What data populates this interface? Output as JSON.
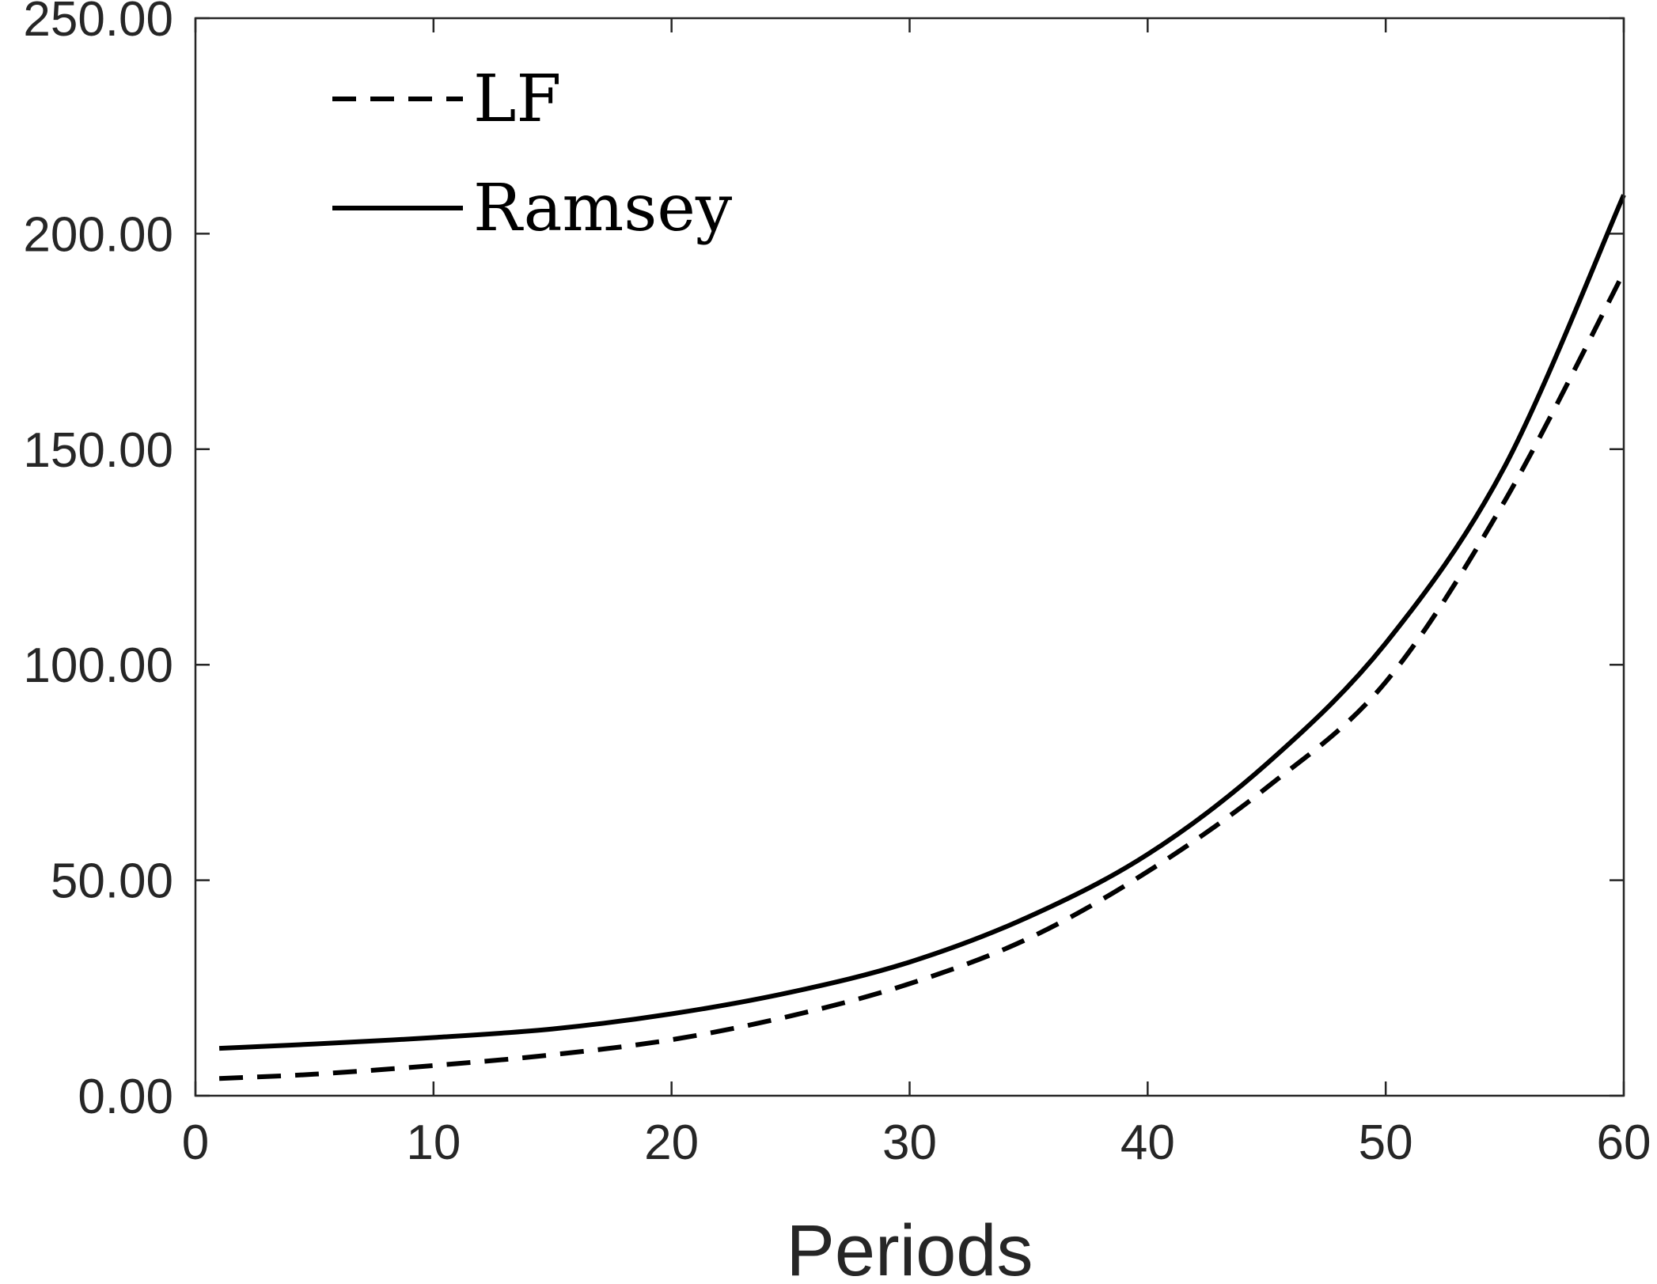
{
  "chart_data": {
    "type": "line",
    "title": "",
    "xlabel": "Periods",
    "ylabel": "",
    "xlim": [
      0,
      60
    ],
    "ylim": [
      0,
      250
    ],
    "x_ticks": [
      0,
      10,
      20,
      30,
      40,
      50,
      60
    ],
    "x_tick_labels": [
      "0",
      "10",
      "20",
      "30",
      "40",
      "50",
      "60"
    ],
    "y_ticks": [
      0,
      50,
      100,
      150,
      200,
      250
    ],
    "y_tick_labels": [
      "0.00",
      "50.00",
      "100.00",
      "150.00",
      "200.00",
      "250.00"
    ],
    "grid": false,
    "legend_position": "top-left",
    "series": [
      {
        "name": "LF",
        "line_style": "dashed",
        "color": "#000000",
        "x": [
          1,
          5,
          10,
          15,
          20,
          25,
          30,
          35,
          40,
          45,
          50,
          55,
          60
        ],
        "y": [
          4.0,
          5.0,
          7.0,
          9.5,
          13.0,
          18.5,
          26.0,
          36.5,
          52.0,
          71.5,
          96.0,
          138.0,
          191.0
        ]
      },
      {
        "name": "Ramsey",
        "line_style": "solid",
        "color": "#000000",
        "x": [
          1,
          5,
          10,
          15,
          20,
          25,
          30,
          35,
          40,
          45,
          50,
          55,
          60
        ],
        "y": [
          11.0,
          12.0,
          13.5,
          15.5,
          19.0,
          24.0,
          31.0,
          41.5,
          56.0,
          77.0,
          105.0,
          146.0,
          209.0
        ]
      }
    ]
  }
}
